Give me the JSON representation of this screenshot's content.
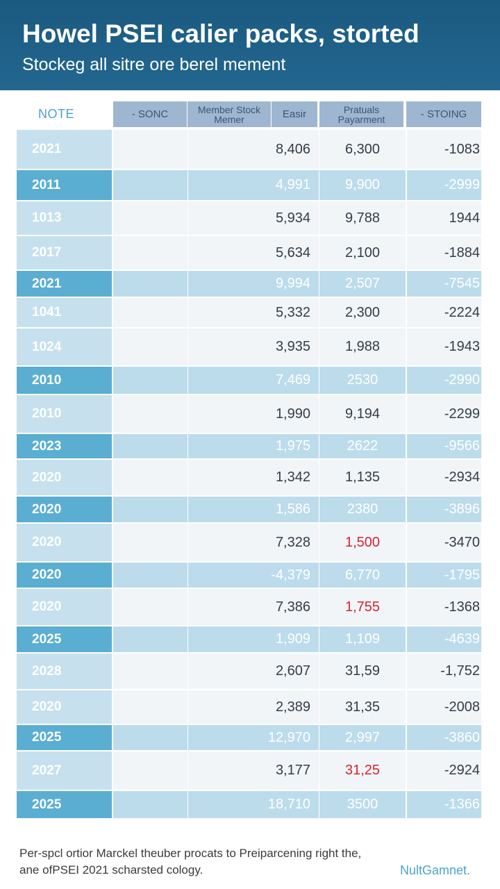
{
  "header": {
    "title": "Howel PSEI calier packs, storted",
    "subtitle": "Stockeg all sitre ore berel mement"
  },
  "table": {
    "note_label": "NOTE",
    "columns": [
      "- SONC",
      "Member Stock Memer",
      "Easir",
      "Pratuals Payarment",
      "- STOING"
    ]
  },
  "chart_data": {
    "type": "table",
    "columns": [
      "NOTE",
      "- SONC",
      "Member Stock Memer",
      "Easir",
      "Pratuals Payarment",
      "- STOING"
    ],
    "rows": [
      {
        "year": "2021",
        "stock": "8,406",
        "payment": "6,300",
        "stoing": "-1083",
        "style": "light",
        "payment_red": false
      },
      {
        "year": "2011",
        "stock": "4,991",
        "payment": "9,900",
        "stoing": "-2999",
        "style": "dark",
        "payment_red": false
      },
      {
        "year": "1013",
        "stock": "5,934",
        "payment": "9,788",
        "stoing": "1944",
        "style": "light",
        "payment_red": false
      },
      {
        "year": "2017",
        "stock": "5,634",
        "payment": "2,100",
        "stoing": "-1884",
        "style": "light",
        "payment_red": false
      },
      {
        "year": "2021",
        "stock": "9,994",
        "payment": "2,507",
        "stoing": "-7545",
        "style": "dark",
        "payment_red": false
      },
      {
        "year": "1041",
        "stock": "5,332",
        "payment": "2,300",
        "stoing": "-2224",
        "style": "light",
        "payment_red": false
      },
      {
        "year": "1024",
        "stock": "3,935",
        "payment": "1,988",
        "stoing": "-1943",
        "style": "light",
        "payment_red": false
      },
      {
        "year": "2010",
        "stock": "7,469",
        "payment": "2530",
        "stoing": "-2990",
        "style": "dark",
        "payment_red": false
      },
      {
        "year": "2010",
        "stock": "1,990",
        "payment": "9,194",
        "stoing": "-2299",
        "style": "light",
        "payment_red": false
      },
      {
        "year": "2023",
        "stock": "1,975",
        "payment": "2622",
        "stoing": "-9566",
        "style": "dark",
        "payment_red": false
      },
      {
        "year": "2020",
        "stock": "1,342",
        "payment": "1,135",
        "stoing": "-2934",
        "style": "light",
        "payment_red": false
      },
      {
        "year": "2020",
        "stock": "1,586",
        "payment": "2380",
        "stoing": "-3896",
        "style": "dark",
        "payment_red": false
      },
      {
        "year": "2020",
        "stock": "7,328",
        "payment": "1,500",
        "stoing": "-3470",
        "style": "light",
        "payment_red": true
      },
      {
        "year": "2020",
        "stock": "-4,379",
        "payment": "6,770",
        "stoing": "-1795",
        "style": "dark",
        "payment_red": false
      },
      {
        "year": "2020",
        "stock": "7,386",
        "payment": "1,755",
        "stoing": "-1368",
        "style": "light",
        "payment_red": true
      },
      {
        "year": "2025",
        "stock": "1,909",
        "payment": "1,109",
        "stoing": "-4639",
        "style": "dark",
        "payment_red": false
      },
      {
        "year": "2028",
        "stock": "2,607",
        "payment": "31,59",
        "stoing": "-1,752",
        "style": "light",
        "payment_red": false
      },
      {
        "year": "2020",
        "stock": "2,389",
        "payment": "31,35",
        "stoing": "-2008",
        "style": "light",
        "payment_red": false
      },
      {
        "year": "2025",
        "stock": "12,970",
        "payment": "2,997",
        "stoing": "-3860",
        "style": "dark",
        "payment_red": false
      },
      {
        "year": "2027",
        "stock": "3,177",
        "payment": "31,25",
        "stoing": "-2924",
        "style": "light",
        "payment_red": true
      },
      {
        "year": "2025",
        "stock": "18,710",
        "payment": "3500",
        "stoing": "-1366",
        "style": "dark",
        "payment_red": false
      }
    ]
  },
  "footer": {
    "line1": "Per-spcl ortior Marckel theuber procats to Preiparcening right the,",
    "line2": "ane ofPSEI 2021 scharsted cology."
  },
  "watermark": "NultGamnet."
}
